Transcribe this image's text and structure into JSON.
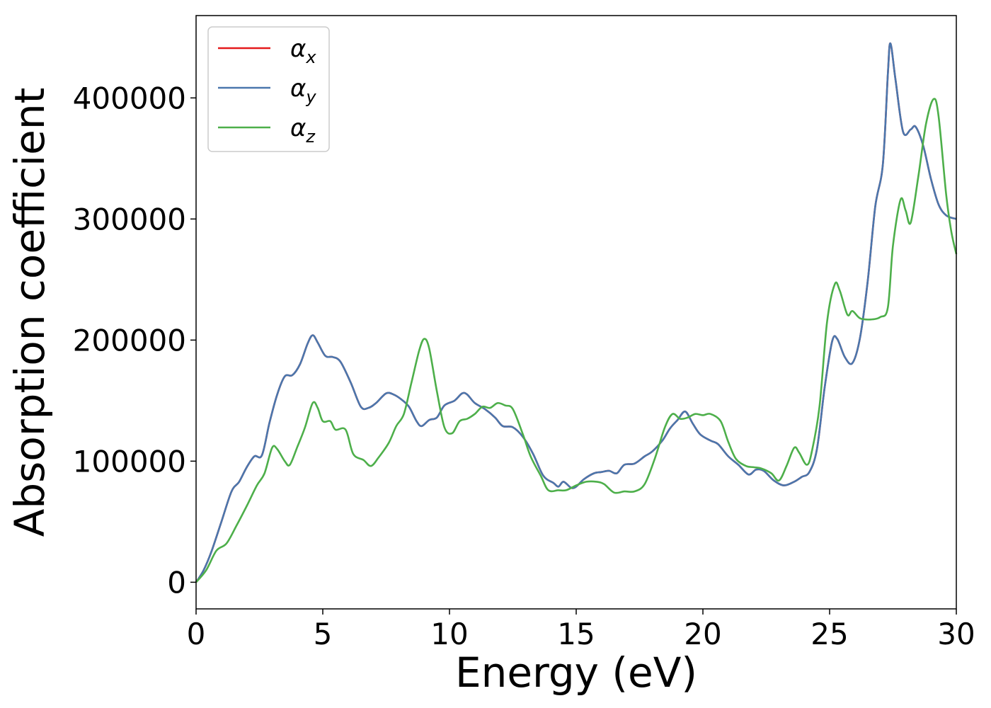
{
  "chart_data": {
    "type": "line",
    "title": "",
    "xlabel": "Energy (eV)",
    "ylabel": "Absorption coefficient",
    "xlim": [
      0,
      30
    ],
    "ylim": [
      -22000,
      468000
    ],
    "xticks": [
      0,
      5,
      10,
      15,
      20,
      25,
      30
    ],
    "yticks": [
      0,
      100000,
      200000,
      300000,
      400000
    ],
    "xtick_labels": [
      "0",
      "5",
      "10",
      "15",
      "20",
      "25",
      "30"
    ],
    "ytick_labels": [
      "0",
      "100000",
      "200000",
      "300000",
      "400000"
    ],
    "grid": false,
    "legend_position": "top-left",
    "series": [
      {
        "name": "α",
        "subscript": "x",
        "color": "#e41a1c",
        "points": [
          [
            0,
            0
          ],
          [
            0.3,
            10000
          ],
          [
            0.6,
            25000
          ],
          [
            1.0,
            50000
          ],
          [
            1.4,
            75000
          ],
          [
            1.7,
            83000
          ],
          [
            2.0,
            95000
          ],
          [
            2.3,
            104000
          ],
          [
            2.6,
            105000
          ],
          [
            2.9,
            132000
          ],
          [
            3.2,
            155000
          ],
          [
            3.5,
            170000
          ],
          [
            3.8,
            171000
          ],
          [
            4.1,
            180000
          ],
          [
            4.4,
            197000
          ],
          [
            4.6,
            204000
          ],
          [
            4.8,
            198000
          ],
          [
            5.1,
            187000
          ],
          [
            5.4,
            186000
          ],
          [
            5.7,
            182000
          ],
          [
            6.1,
            165000
          ],
          [
            6.5,
            145000
          ],
          [
            6.8,
            144000
          ],
          [
            7.1,
            148000
          ],
          [
            7.5,
            156000
          ],
          [
            7.8,
            155000
          ],
          [
            8.1,
            151000
          ],
          [
            8.4,
            145000
          ],
          [
            8.7,
            133000
          ],
          [
            8.9,
            129000
          ],
          [
            9.2,
            134000
          ],
          [
            9.5,
            136000
          ],
          [
            9.8,
            146000
          ],
          [
            10.2,
            150000
          ],
          [
            10.5,
            156000
          ],
          [
            10.7,
            155000
          ],
          [
            11.0,
            148000
          ],
          [
            11.4,
            143000
          ],
          [
            11.8,
            136000
          ],
          [
            12.1,
            129000
          ],
          [
            12.5,
            128000
          ],
          [
            12.9,
            120000
          ],
          [
            13.3,
            106000
          ],
          [
            13.7,
            88000
          ],
          [
            14.1,
            82000
          ],
          [
            14.3,
            79000
          ],
          [
            14.5,
            83000
          ],
          [
            14.8,
            78000
          ],
          [
            15.0,
            79000
          ],
          [
            15.3,
            85000
          ],
          [
            15.7,
            90000
          ],
          [
            16.0,
            91000
          ],
          [
            16.3,
            92000
          ],
          [
            16.6,
            90000
          ],
          [
            16.9,
            97000
          ],
          [
            17.3,
            98000
          ],
          [
            17.7,
            104000
          ],
          [
            18.0,
            108000
          ],
          [
            18.4,
            117000
          ],
          [
            18.7,
            127000
          ],
          [
            19.0,
            134000
          ],
          [
            19.3,
            141000
          ],
          [
            19.6,
            131000
          ],
          [
            19.9,
            122000
          ],
          [
            20.3,
            117000
          ],
          [
            20.6,
            114000
          ],
          [
            21.0,
            104000
          ],
          [
            21.4,
            97000
          ],
          [
            21.8,
            89000
          ],
          [
            22.1,
            93000
          ],
          [
            22.4,
            92000
          ],
          [
            22.8,
            84000
          ],
          [
            23.2,
            80000
          ],
          [
            23.6,
            83000
          ],
          [
            23.9,
            87000
          ],
          [
            24.2,
            91000
          ],
          [
            24.5,
            110000
          ],
          [
            24.8,
            160000
          ],
          [
            25.1,
            199000
          ],
          [
            25.3,
            201000
          ],
          [
            25.6,
            186000
          ],
          [
            25.9,
            181000
          ],
          [
            26.2,
            202000
          ],
          [
            26.5,
            248000
          ],
          [
            26.8,
            310000
          ],
          [
            27.1,
            345000
          ],
          [
            27.3,
            420000
          ],
          [
            27.4,
            445000
          ],
          [
            27.6,
            415000
          ],
          [
            27.9,
            372000
          ],
          [
            28.2,
            374000
          ],
          [
            28.4,
            376000
          ],
          [
            28.7,
            360000
          ],
          [
            29.0,
            333000
          ],
          [
            29.3,
            312000
          ],
          [
            29.6,
            303000
          ],
          [
            30.0,
            300000
          ]
        ]
      },
      {
        "name": "α",
        "subscript": "y",
        "color": "#4a77ad",
        "points": [
          [
            0,
            0
          ],
          [
            0.3,
            10000
          ],
          [
            0.6,
            25000
          ],
          [
            1.0,
            50000
          ],
          [
            1.4,
            75000
          ],
          [
            1.7,
            83000
          ],
          [
            2.0,
            95000
          ],
          [
            2.3,
            104000
          ],
          [
            2.6,
            105000
          ],
          [
            2.9,
            132000
          ],
          [
            3.2,
            155000
          ],
          [
            3.5,
            170000
          ],
          [
            3.8,
            171000
          ],
          [
            4.1,
            180000
          ],
          [
            4.4,
            197000
          ],
          [
            4.6,
            204000
          ],
          [
            4.8,
            198000
          ],
          [
            5.1,
            187000
          ],
          [
            5.4,
            186000
          ],
          [
            5.7,
            182000
          ],
          [
            6.1,
            165000
          ],
          [
            6.5,
            145000
          ],
          [
            6.8,
            144000
          ],
          [
            7.1,
            148000
          ],
          [
            7.5,
            156000
          ],
          [
            7.8,
            155000
          ],
          [
            8.1,
            151000
          ],
          [
            8.4,
            145000
          ],
          [
            8.7,
            133000
          ],
          [
            8.9,
            129000
          ],
          [
            9.2,
            134000
          ],
          [
            9.5,
            136000
          ],
          [
            9.8,
            146000
          ],
          [
            10.2,
            150000
          ],
          [
            10.5,
            156000
          ],
          [
            10.7,
            155000
          ],
          [
            11.0,
            148000
          ],
          [
            11.4,
            143000
          ],
          [
            11.8,
            136000
          ],
          [
            12.1,
            129000
          ],
          [
            12.5,
            128000
          ],
          [
            12.9,
            120000
          ],
          [
            13.3,
            106000
          ],
          [
            13.7,
            88000
          ],
          [
            14.1,
            82000
          ],
          [
            14.3,
            79000
          ],
          [
            14.5,
            83000
          ],
          [
            14.8,
            78000
          ],
          [
            15.0,
            79000
          ],
          [
            15.3,
            85000
          ],
          [
            15.7,
            90000
          ],
          [
            16.0,
            91000
          ],
          [
            16.3,
            92000
          ],
          [
            16.6,
            90000
          ],
          [
            16.9,
            97000
          ],
          [
            17.3,
            98000
          ],
          [
            17.7,
            104000
          ],
          [
            18.0,
            108000
          ],
          [
            18.4,
            117000
          ],
          [
            18.7,
            127000
          ],
          [
            19.0,
            134000
          ],
          [
            19.3,
            141000
          ],
          [
            19.6,
            131000
          ],
          [
            19.9,
            122000
          ],
          [
            20.3,
            117000
          ],
          [
            20.6,
            114000
          ],
          [
            21.0,
            104000
          ],
          [
            21.4,
            97000
          ],
          [
            21.8,
            89000
          ],
          [
            22.1,
            93000
          ],
          [
            22.4,
            92000
          ],
          [
            22.8,
            84000
          ],
          [
            23.2,
            80000
          ],
          [
            23.6,
            83000
          ],
          [
            23.9,
            87000
          ],
          [
            24.2,
            91000
          ],
          [
            24.5,
            110000
          ],
          [
            24.8,
            160000
          ],
          [
            25.1,
            199000
          ],
          [
            25.3,
            201000
          ],
          [
            25.6,
            186000
          ],
          [
            25.9,
            181000
          ],
          [
            26.2,
            202000
          ],
          [
            26.5,
            248000
          ],
          [
            26.8,
            310000
          ],
          [
            27.1,
            345000
          ],
          [
            27.3,
            420000
          ],
          [
            27.4,
            445000
          ],
          [
            27.6,
            415000
          ],
          [
            27.9,
            372000
          ],
          [
            28.2,
            374000
          ],
          [
            28.4,
            376000
          ],
          [
            28.7,
            360000
          ],
          [
            29.0,
            333000
          ],
          [
            29.3,
            312000
          ],
          [
            29.6,
            303000
          ],
          [
            30.0,
            300000
          ]
        ]
      },
      {
        "name": "α",
        "subscript": "z",
        "color": "#4daf4a",
        "points": [
          [
            0,
            0
          ],
          [
            0.4,
            10000
          ],
          [
            0.8,
            26000
          ],
          [
            1.2,
            32000
          ],
          [
            1.6,
            47000
          ],
          [
            2.0,
            63000
          ],
          [
            2.4,
            80000
          ],
          [
            2.7,
            90000
          ],
          [
            3.0,
            111000
          ],
          [
            3.2,
            110000
          ],
          [
            3.5,
            100000
          ],
          [
            3.7,
            97000
          ],
          [
            4.0,
            112000
          ],
          [
            4.3,
            128000
          ],
          [
            4.6,
            148000
          ],
          [
            4.8,
            144000
          ],
          [
            5.0,
            133000
          ],
          [
            5.3,
            133000
          ],
          [
            5.5,
            126000
          ],
          [
            5.9,
            126000
          ],
          [
            6.2,
            106000
          ],
          [
            6.6,
            101000
          ],
          [
            6.9,
            96000
          ],
          [
            7.2,
            103000
          ],
          [
            7.6,
            115000
          ],
          [
            7.9,
            129000
          ],
          [
            8.2,
            139000
          ],
          [
            8.5,
            165000
          ],
          [
            8.8,
            191000
          ],
          [
            9.0,
            201000
          ],
          [
            9.2,
            193000
          ],
          [
            9.5,
            158000
          ],
          [
            9.8,
            128000
          ],
          [
            10.1,
            123000
          ],
          [
            10.4,
            133000
          ],
          [
            10.7,
            135000
          ],
          [
            11.0,
            139000
          ],
          [
            11.3,
            145000
          ],
          [
            11.6,
            144000
          ],
          [
            11.9,
            148000
          ],
          [
            12.2,
            146000
          ],
          [
            12.5,
            143000
          ],
          [
            12.9,
            122000
          ],
          [
            13.2,
            104000
          ],
          [
            13.6,
            88000
          ],
          [
            13.9,
            76000
          ],
          [
            14.3,
            76000
          ],
          [
            14.6,
            76000
          ],
          [
            15.0,
            80000
          ],
          [
            15.4,
            83000
          ],
          [
            15.8,
            83000
          ],
          [
            16.1,
            81000
          ],
          [
            16.5,
            74000
          ],
          [
            16.9,
            75000
          ],
          [
            17.3,
            75000
          ],
          [
            17.7,
            81000
          ],
          [
            18.1,
            102000
          ],
          [
            18.5,
            128000
          ],
          [
            18.8,
            139000
          ],
          [
            19.1,
            135000
          ],
          [
            19.4,
            136000
          ],
          [
            19.7,
            139000
          ],
          [
            20.0,
            138000
          ],
          [
            20.3,
            139000
          ],
          [
            20.7,
            133000
          ],
          [
            21.0,
            116000
          ],
          [
            21.3,
            102000
          ],
          [
            21.7,
            96000
          ],
          [
            22.0,
            95000
          ],
          [
            22.3,
            94000
          ],
          [
            22.7,
            90000
          ],
          [
            23.0,
            84000
          ],
          [
            23.3,
            96000
          ],
          [
            23.6,
            111000
          ],
          [
            23.8,
            107000
          ],
          [
            24.1,
            97000
          ],
          [
            24.3,
            108000
          ],
          [
            24.6,
            145000
          ],
          [
            24.9,
            215000
          ],
          [
            25.2,
            246000
          ],
          [
            25.4,
            241000
          ],
          [
            25.7,
            221000
          ],
          [
            25.9,
            224000
          ],
          [
            26.2,
            218000
          ],
          [
            26.6,
            217000
          ],
          [
            27.0,
            219000
          ],
          [
            27.3,
            227000
          ],
          [
            27.5,
            278000
          ],
          [
            27.8,
            316000
          ],
          [
            28.0,
            307000
          ],
          [
            28.2,
            297000
          ],
          [
            28.5,
            335000
          ],
          [
            28.8,
            378000
          ],
          [
            29.1,
            399000
          ],
          [
            29.3,
            385000
          ],
          [
            29.6,
            320000
          ],
          [
            29.8,
            290000
          ],
          [
            30.0,
            271000
          ]
        ]
      }
    ]
  }
}
